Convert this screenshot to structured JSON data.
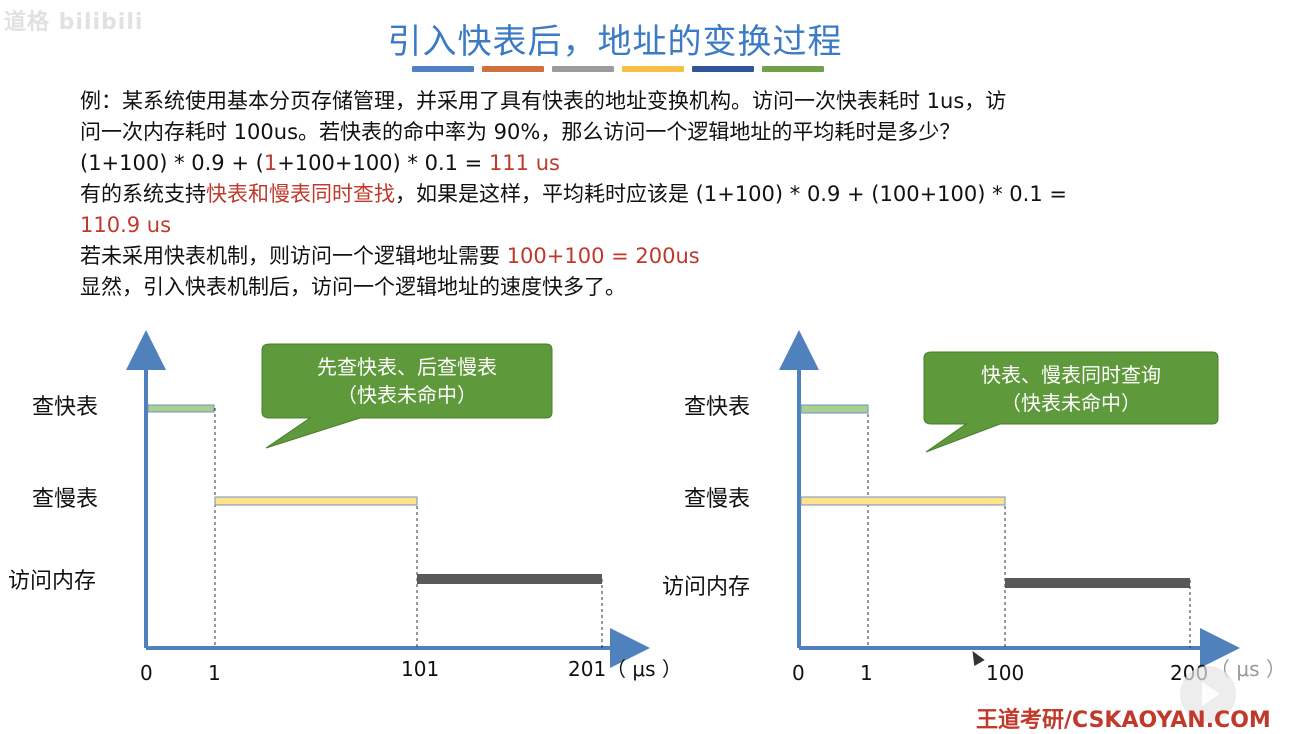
{
  "watermark_top": "道格 bilibili",
  "title": "引入快表后，地址的变换过程",
  "title_bar_colors": [
    "#4f81bd",
    "#c0504d",
    "#9b9b9b",
    "#f6c045",
    "#2f5597",
    "#70a04a"
  ],
  "paragraph": {
    "line1": "例：某系统使用基本分页存储管理，并采用了具有快表的地址变换机构。访问一次快表耗时 1us，访",
    "line2": "问一次内存耗时 100us。若快表的命中率为 90%，那么访问一个逻辑地址的平均耗时是多少？",
    "line3_a": "(1+100) * 0.9 + (",
    "line3_b": "1",
    "line3_c": "+100+100) * 0.1 = ",
    "line3_d": "111 us",
    "line4_a": "有的系统支持",
    "line4_b": "快表和慢表同时查找",
    "line4_c": "，如果是这样，平均耗时应该是 (1+100) * 0.9 + (100+100) * 0.1 =",
    "line5": "110.9 us",
    "line6_a": "若未采用快表机制，则访问一个逻辑地址需要 ",
    "line6_b": "100+100 = 200us",
    "line7": "显然，引入快表机制后，访问一个逻辑地址的速度快多了。"
  },
  "left_diagram": {
    "callout_line1": "先查快表、后查慢表",
    "callout_line2": "（快表未命中）",
    "labels": [
      "查快表",
      "查慢表",
      "访问内存"
    ],
    "ticks": [
      "0",
      "1",
      "101",
      "201"
    ],
    "unit": "（ μs ）"
  },
  "right_diagram": {
    "callout_line1": "快表、慢表同时查询",
    "callout_line2": "（快表未命中）",
    "labels": [
      "查快表",
      "查慢表",
      "访问内存"
    ],
    "ticks": [
      "0",
      "1",
      "100",
      "200"
    ],
    "unit": "（ μs ）"
  },
  "footer_mark": "王道考研/CSKAOYAN.COM",
  "colors": {
    "axis": "#4f81bd",
    "fast_bar": "#a9d08e",
    "slow_bar": "#ffe28a",
    "mem_bar": "#595959",
    "callout": "#5e9a3c"
  }
}
